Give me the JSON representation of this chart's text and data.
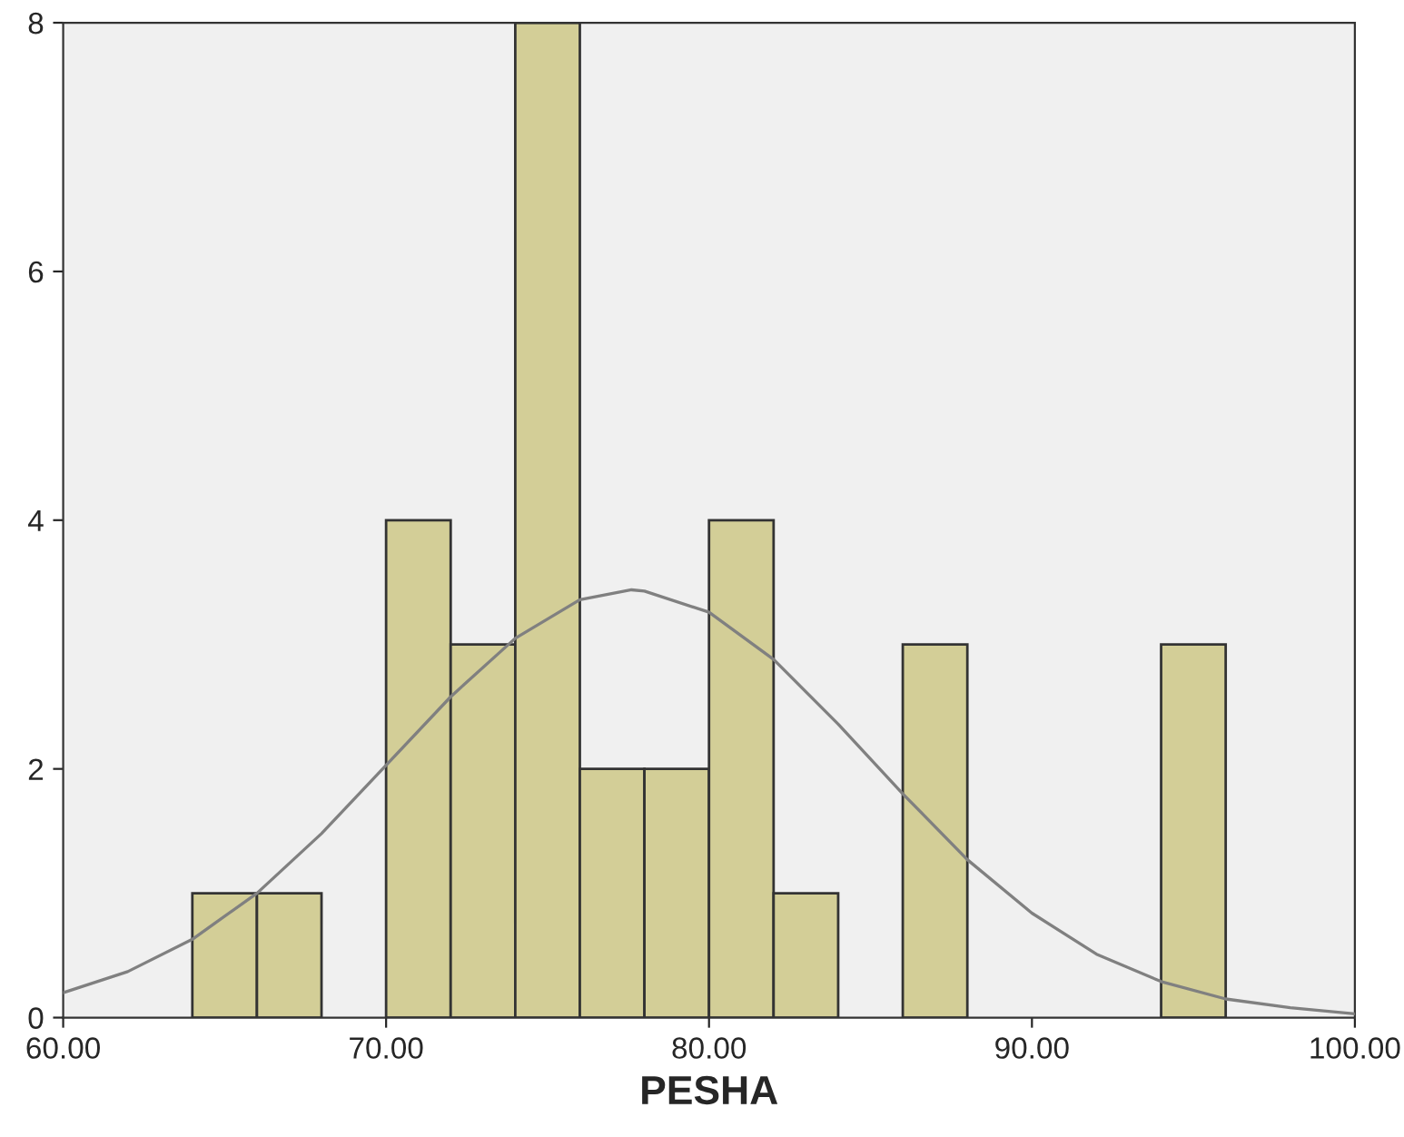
{
  "chart_data": {
    "type": "histogram",
    "xlabel": "PESHA",
    "bins": [
      64,
      66,
      68,
      70,
      72,
      74,
      76,
      78,
      80,
      82,
      84,
      86,
      88,
      90,
      92,
      94,
      96
    ],
    "values": [
      1,
      1,
      0,
      4,
      3,
      8,
      2,
      2,
      4,
      1,
      0,
      3,
      0,
      0,
      0,
      3
    ],
    "color": "#d3ce97",
    "series": [
      {
        "type": "line",
        "color": "#808080",
        "x": [
          60,
          62,
          64,
          66,
          68,
          70,
          72,
          74,
          76,
          77.6,
          78,
          80,
          82,
          84,
          86,
          88,
          90,
          92,
          94,
          96,
          98,
          100
        ],
        "values": [
          0.2,
          0.37,
          0.63,
          1.0,
          1.48,
          2.03,
          2.58,
          3.05,
          3.36,
          3.44,
          3.43,
          3.26,
          2.88,
          2.36,
          1.8,
          1.27,
          0.84,
          0.51,
          0.29,
          0.15,
          0.08,
          0.03
        ]
      }
    ],
    "xlim": [
      60,
      100
    ],
    "xticks": [
      {
        "value": 60,
        "label": "60.00"
      },
      {
        "value": 70,
        "label": "70.00"
      },
      {
        "value": 80,
        "label": "80.00"
      },
      {
        "value": 90,
        "label": "90.00"
      },
      {
        "value": 100,
        "label": "100.00"
      }
    ],
    "ylim": [
      0,
      8
    ],
    "yticks": [
      0,
      2,
      4,
      6,
      8
    ],
    "grid": false,
    "legend": false
  }
}
